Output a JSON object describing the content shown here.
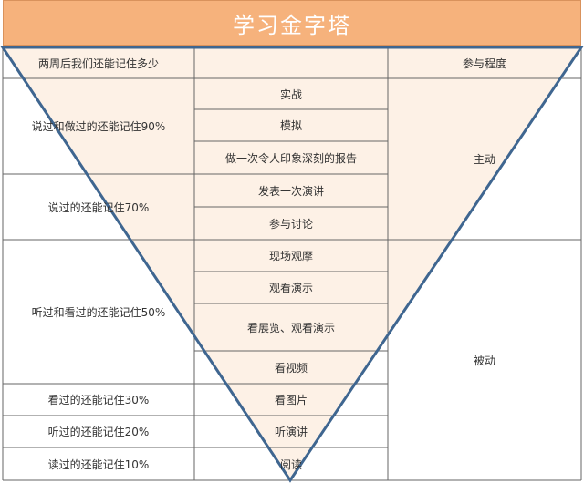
{
  "title": "学习金字塔",
  "header": {
    "left": "两周后我们还能记住多少",
    "middle": "",
    "right": "参与程度"
  },
  "retention": [
    "说过和做过的还能记住90%",
    "说过的还能记住70%",
    "听过和看过的还能记住50%",
    "看过的还能记住30%",
    "听过的还能记住20%",
    "读过的还能记住10%"
  ],
  "methods": [
    "实战",
    "模拟",
    "做一次令人印象深刻的报告",
    "发表一次演讲",
    "参与讨论",
    "现场观摩",
    "观看演示",
    "看展览、观看演示",
    "看视频",
    "看图片",
    "听演讲",
    "阅读"
  ],
  "participation": [
    "主动",
    "被动"
  ],
  "colors": {
    "title_bg": "#f6b27c",
    "triangle_fill": "#fdf1e6",
    "triangle_stroke": "#3f6690",
    "grid_line": "#666666"
  }
}
